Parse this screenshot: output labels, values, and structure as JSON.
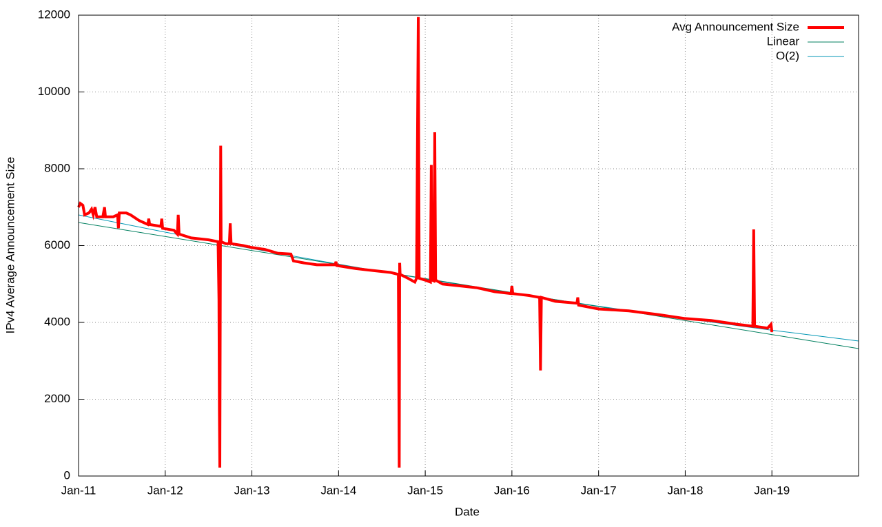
{
  "chart_data": {
    "type": "line",
    "x_label": "Date",
    "y_label": "IPv4 Average Announcement Size",
    "xlim": [
      2011,
      2020
    ],
    "xticks": [
      {
        "value": 2011,
        "label": "Jan-11"
      },
      {
        "value": 2012,
        "label": "Jan-12"
      },
      {
        "value": 2013,
        "label": "Jan-13"
      },
      {
        "value": 2014,
        "label": "Jan-14"
      },
      {
        "value": 2015,
        "label": "Jan-15"
      },
      {
        "value": 2016,
        "label": "Jan-16"
      },
      {
        "value": 2017,
        "label": "Jan-17"
      },
      {
        "value": 2018,
        "label": "Jan-18"
      },
      {
        "value": 2019,
        "label": "Jan-19"
      }
    ],
    "ylim": [
      0,
      12000
    ],
    "yticks": [
      0,
      2000,
      4000,
      6000,
      8000,
      10000,
      12000
    ],
    "grid": true,
    "legend": "top-right",
    "series": [
      {
        "name": "Avg Announcement Size",
        "color": "#ff0000",
        "width": 4,
        "x": [
          2011.0,
          2011.02,
          2011.05,
          2011.07,
          2011.12,
          2011.15,
          2011.17,
          2011.19,
          2011.21,
          2011.28,
          2011.3,
          2011.31,
          2011.4,
          2011.45,
          2011.46,
          2011.47,
          2011.55,
          2011.6,
          2011.7,
          2011.8,
          2011.81,
          2011.82,
          2011.95,
          2011.96,
          2011.97,
          2012.1,
          2012.14,
          2012.15,
          2012.16,
          2012.3,
          2012.5,
          2012.61,
          2012.62,
          2012.625,
          2012.63,
          2012.64,
          2012.645,
          2012.7,
          2012.74,
          2012.75,
          2012.76,
          2012.9,
          2013.0,
          2013.15,
          2013.3,
          2013.45,
          2013.48,
          2013.6,
          2013.75,
          2013.96,
          2013.97,
          2013.98,
          2014.2,
          2014.4,
          2014.6,
          2014.69,
          2014.7,
          2014.705,
          2014.71,
          2014.8,
          2014.88,
          2014.9,
          2014.92,
          2014.93,
          2015.0,
          2015.06,
          2015.07,
          2015.08,
          2015.1,
          2015.11,
          2015.115,
          2015.12,
          2015.2,
          2015.4,
          2015.6,
          2015.8,
          2015.99,
          2016.0,
          2016.01,
          2016.2,
          2016.32,
          2016.33,
          2016.34,
          2016.5,
          2016.75,
          2016.76,
          2016.77,
          2017.0,
          2017.35,
          2017.7,
          2018.0,
          2018.3,
          2018.6,
          2018.78,
          2018.79,
          2018.8,
          2018.95,
          2018.99,
          2019.0
        ],
        "values": [
          7000,
          7100,
          7050,
          6800,
          6850,
          6950,
          6800,
          7000,
          6750,
          6750,
          7000,
          6750,
          6750,
          6800,
          6450,
          6850,
          6850,
          6800,
          6650,
          6550,
          6700,
          6550,
          6500,
          6700,
          6450,
          6400,
          6300,
          6800,
          6300,
          6200,
          6150,
          6100,
          4600,
          1700,
          220,
          8600,
          6100,
          6050,
          6050,
          6580,
          6050,
          6000,
          5950,
          5900,
          5800,
          5780,
          5600,
          5550,
          5500,
          5500,
          5580,
          5480,
          5400,
          5350,
          5300,
          5250,
          220,
          5550,
          5250,
          5150,
          5050,
          5150,
          11950,
          5150,
          5100,
          5050,
          8100,
          5100,
          5080,
          8950,
          7000,
          5100,
          5000,
          4950,
          4900,
          4800,
          4750,
          4950,
          4750,
          4700,
          4650,
          2750,
          4650,
          4550,
          4500,
          4650,
          4450,
          4350,
          4300,
          4200,
          4100,
          4050,
          3950,
          3900,
          6420,
          3900,
          3850,
          3950,
          3750
        ]
      },
      {
        "name": "Linear",
        "color": "#007f5f",
        "width": 1,
        "x": [
          2011,
          2020
        ],
        "values": [
          6601,
          3318
        ]
      },
      {
        "name": "O(2)",
        "color": "#0096b4",
        "width": 1,
        "x": [
          2011,
          2012,
          2013,
          2014,
          2015,
          2016,
          2017,
          2018,
          2019,
          2020
        ],
        "values": [
          6798,
          6350,
          5922,
          5515,
          5130,
          4765,
          4422,
          4099,
          3797,
          3516
        ]
      }
    ]
  }
}
